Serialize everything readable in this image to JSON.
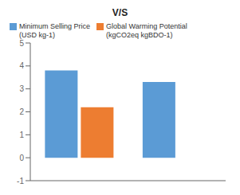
{
  "chart_data": {
    "type": "bar",
    "title": "V/S",
    "categories": [
      null,
      null
    ],
    "series": [
      {
        "name": "Minimum Selling Price\n(USD kg-1)",
        "color": "#5B9BD5",
        "values": [
          3.8,
          3.3
        ]
      },
      {
        "name": "Global Warming Potential\n(kgCO2eq kgBDO-1)",
        "color": "#ED7D31",
        "values": [
          2.2,
          null
        ]
      }
    ],
    "ylim": [
      -1,
      5
    ],
    "yticks": [
      -1,
      0,
      1,
      2,
      3,
      4,
      5
    ],
    "legend": "upper left",
    "tick_labels": "y"
  }
}
